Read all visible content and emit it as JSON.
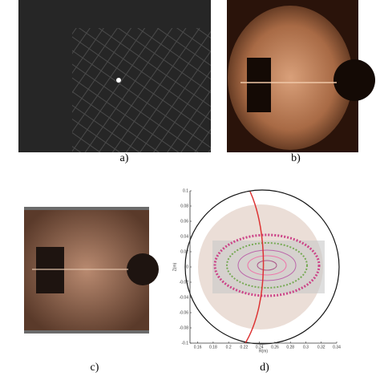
{
  "panels": [
    {
      "label": "a)"
    },
    {
      "label": "b)"
    },
    {
      "label": "c)"
    },
    {
      "label": "d)"
    }
  ],
  "plot": {
    "xlabel": "R(m)",
    "ylabel": "Z(m)",
    "xlim": [
      0.15,
      0.34
    ],
    "ylim": [
      -0.1,
      0.1
    ],
    "xticks": [
      0.16,
      0.18,
      0.2,
      0.22,
      0.24,
      0.26,
      0.28,
      0.3,
      0.32,
      0.34
    ],
    "yticks": [
      0.1,
      0.08,
      0.06,
      0.04,
      0.02,
      0,
      -0.02,
      -0.04,
      -0.06,
      -0.08,
      -0.1
    ]
  }
}
